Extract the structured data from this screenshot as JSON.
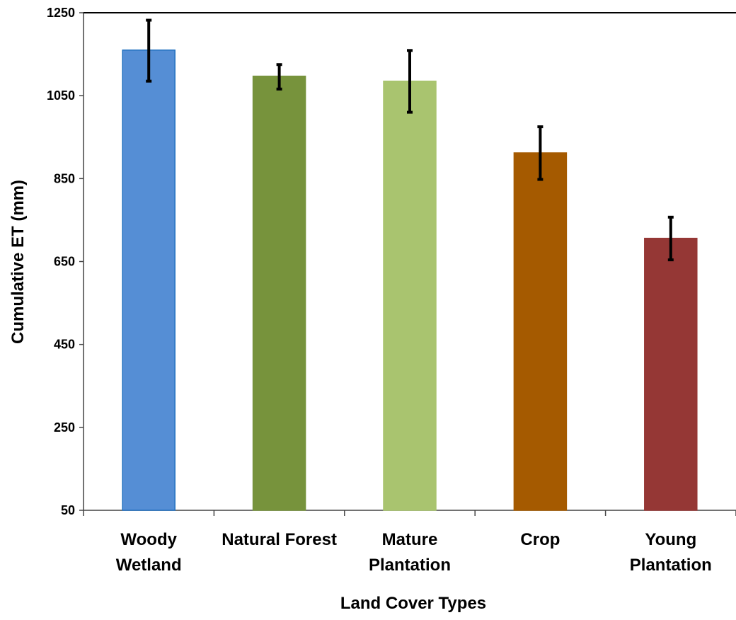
{
  "chart_data": {
    "type": "bar",
    "title": "",
    "xlabel": "Land Cover Types",
    "ylabel": "Cumulative ET (mm)",
    "ylim": [
      50,
      1250
    ],
    "yticks": [
      50,
      250,
      450,
      650,
      850,
      1050,
      1250
    ],
    "grid": false,
    "categories": [
      [
        "Woody",
        "Wetland"
      ],
      [
        "Natural Forest"
      ],
      [
        "Mature",
        "Plantation"
      ],
      [
        "Crop"
      ],
      [
        "Young",
        "Plantation"
      ]
    ],
    "values": [
      1160,
      1097,
      1085,
      912,
      706
    ],
    "error_low": [
      1085,
      1066,
      1010,
      848,
      654
    ],
    "error_high": [
      1232,
      1125,
      1159,
      975,
      757
    ],
    "colors": [
      "#558ed5",
      "#77933c",
      "#a9c46f",
      "#a55a00",
      "#953735"
    ],
    "bar_edge_colors": [
      "#1f6fbf",
      "#77933c",
      "#a9c46f",
      "#a55a00",
      "#953735"
    ],
    "error_bar_color": "#000000"
  }
}
